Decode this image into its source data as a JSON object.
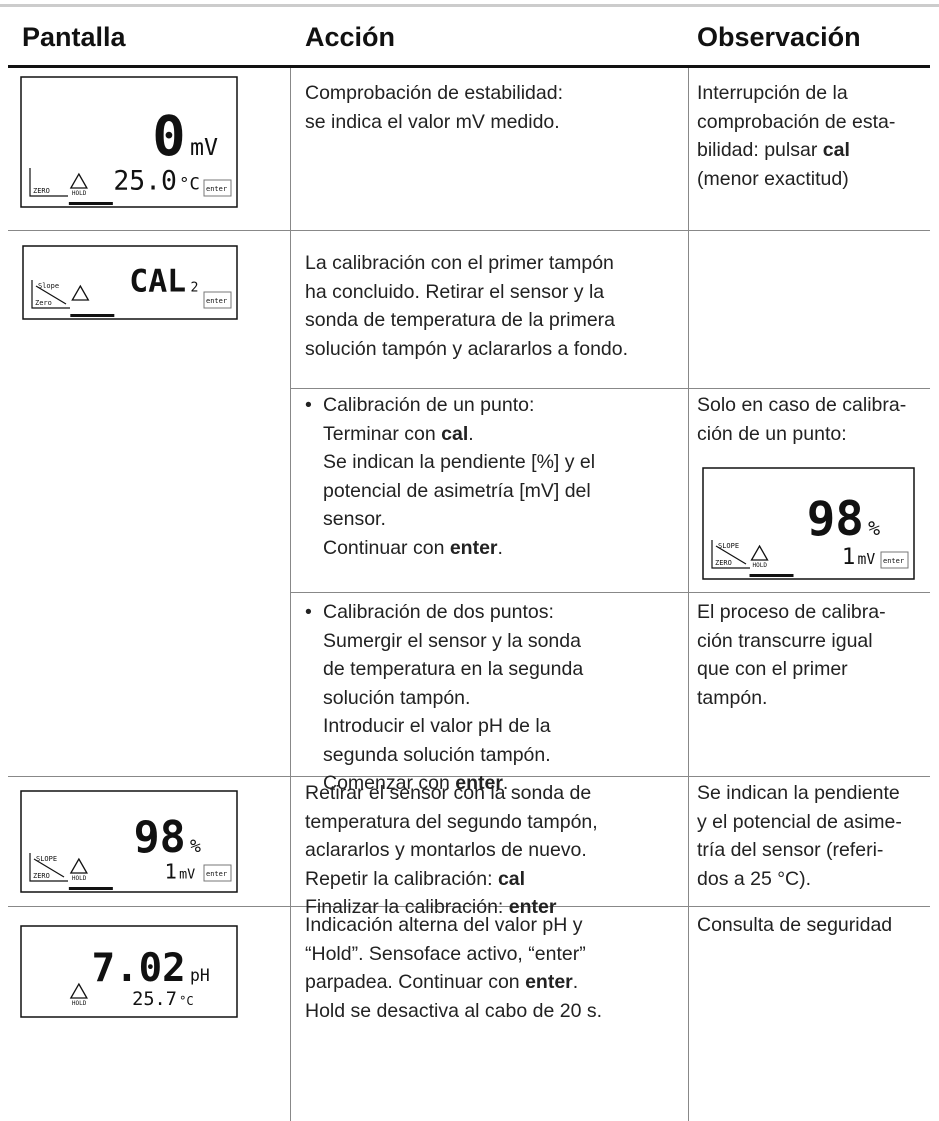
{
  "header": [
    "Pantalla",
    "Acción",
    "Observación"
  ],
  "rows": [
    {
      "display": {
        "main": "0",
        "main_unit": "mV",
        "temp": "25.0",
        "temp_unit": "°C",
        "mode": "ZERO",
        "hold": "HOLD",
        "enter": "enter"
      },
      "action": [
        "Comprobación de estabilidad:",
        "se indica el valor mV medido."
      ],
      "note": [
        "Interrupción de la",
        "comprobación de esta-",
        [
          "bilidad: pulsar ",
          "cal"
        ],
        "(menor exactitud)"
      ]
    },
    {
      "display": {
        "main": "CAL",
        "main_unit": "2",
        "slope": "Slope",
        "mode": "Zero",
        "enter": "enter"
      },
      "action": [
        "La calibración con el primer tampón",
        "ha concluido. Retirar el sensor y la",
        "sonda de temperatura de la primera",
        "solución tampón y aclararlos a fondo."
      ]
    },
    {
      "bullet": "•",
      "action": [
        "Calibración de un punto:",
        [
          "Terminar con ",
          "cal",
          "."
        ],
        "Se indican la pendiente [%] y el",
        "potencial de asimetría [mV] del",
        "sensor.",
        [
          "Continuar con ",
          "enter",
          "."
        ]
      ],
      "note": [
        "Solo en caso de calibra-",
        "ción de un punto:"
      ],
      "note_display": {
        "main": "98",
        "main_unit": "%",
        "temp": "1",
        "temp_unit": "mV",
        "slope": "SLOPE",
        "mode": "ZERO",
        "hold": "HOLD",
        "enter": "enter"
      }
    },
    {
      "bullet": "•",
      "action": [
        "Calibración de dos puntos:",
        "Sumergir el sensor y la sonda",
        "de temperatura en la segunda",
        "solución tampón.",
        "Introducir el valor pH de la",
        "segunda solución tampón.",
        [
          "Comenzar con ",
          "enter",
          "."
        ]
      ],
      "note": [
        "El proceso de calibra-",
        "ción transcurre igual",
        "que con el primer",
        "tampón."
      ]
    },
    {
      "display": {
        "main": "98",
        "main_unit": "%",
        "temp": "1",
        "temp_unit": "mV",
        "slope": "SLOPE",
        "mode": "ZERO",
        "hold": "HOLD",
        "enter": "enter"
      },
      "action": [
        "Retirar el sensor con la sonda de",
        "temperatura del segundo tampón,",
        "aclararlos y montarlos de nuevo.",
        [
          "Repetir la calibración: ",
          "cal"
        ],
        [
          "Finalizar la calibración: ",
          "enter"
        ]
      ],
      "note": [
        "Se indican la pendiente",
        "y el potencial de asime-",
        "tría del sensor (referi-",
        "dos a 25 °C)."
      ]
    },
    {
      "display": {
        "main": "7.02",
        "main_unit": "pH",
        "temp": "25.7",
        "temp_unit": "°C",
        "hold": "HOLD"
      },
      "action": [
        "Indicación alterna del valor pH y",
        "“Hold”. Sensoface activo, “enter”",
        [
          "parpadea. Continuar con ",
          "enter",
          "."
        ],
        "Hold se desactiva al cabo de 20 s."
      ],
      "note": [
        "Consulta de seguridad"
      ]
    }
  ]
}
